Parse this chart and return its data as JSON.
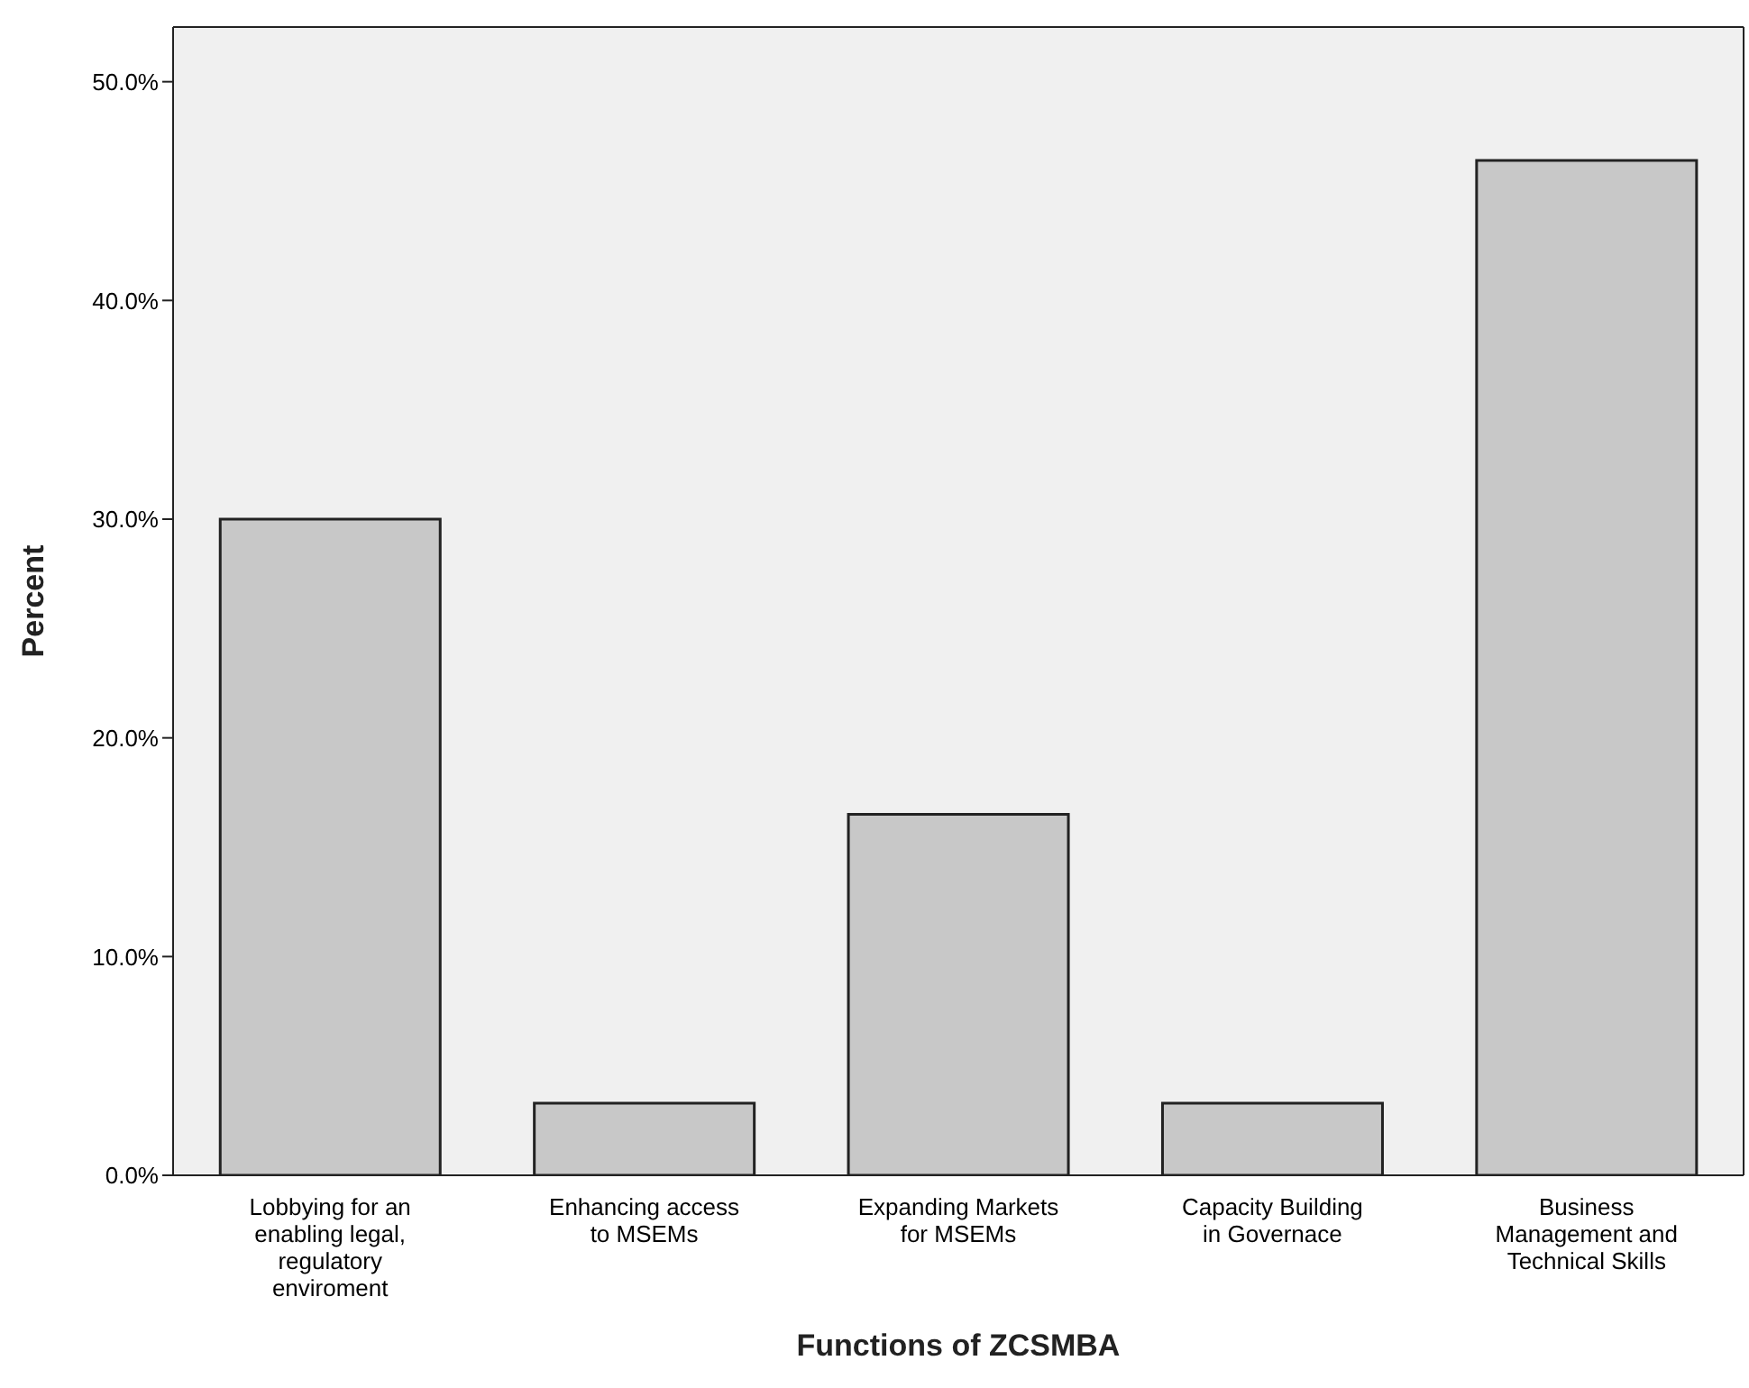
{
  "chart_data": {
    "type": "bar",
    "xlabel": "Functions of ZCSMBA",
    "ylabel": "Percent",
    "categories": [
      "Lobbying for an enabling legal, regulatory enviroment",
      "Enhancing access to MSEMs",
      "Expanding Markets for MSEMs",
      "Capacity Building in Governace",
      "Business Management and Technical Skills"
    ],
    "values": [
      30.0,
      3.3,
      16.5,
      3.3,
      46.4
    ],
    "color": "#c8c8c8",
    "ylim": [
      0,
      52.5
    ],
    "yticks": [
      {
        "value": 0,
        "label": "0.0%"
      },
      {
        "value": 10,
        "label": "10.0%"
      },
      {
        "value": 20,
        "label": "20.0%"
      },
      {
        "value": 30,
        "label": "30.0%"
      },
      {
        "value": 40,
        "label": "40.0%"
      },
      {
        "value": 50,
        "label": "50.0%"
      }
    ],
    "grid": false,
    "legend": false
  }
}
